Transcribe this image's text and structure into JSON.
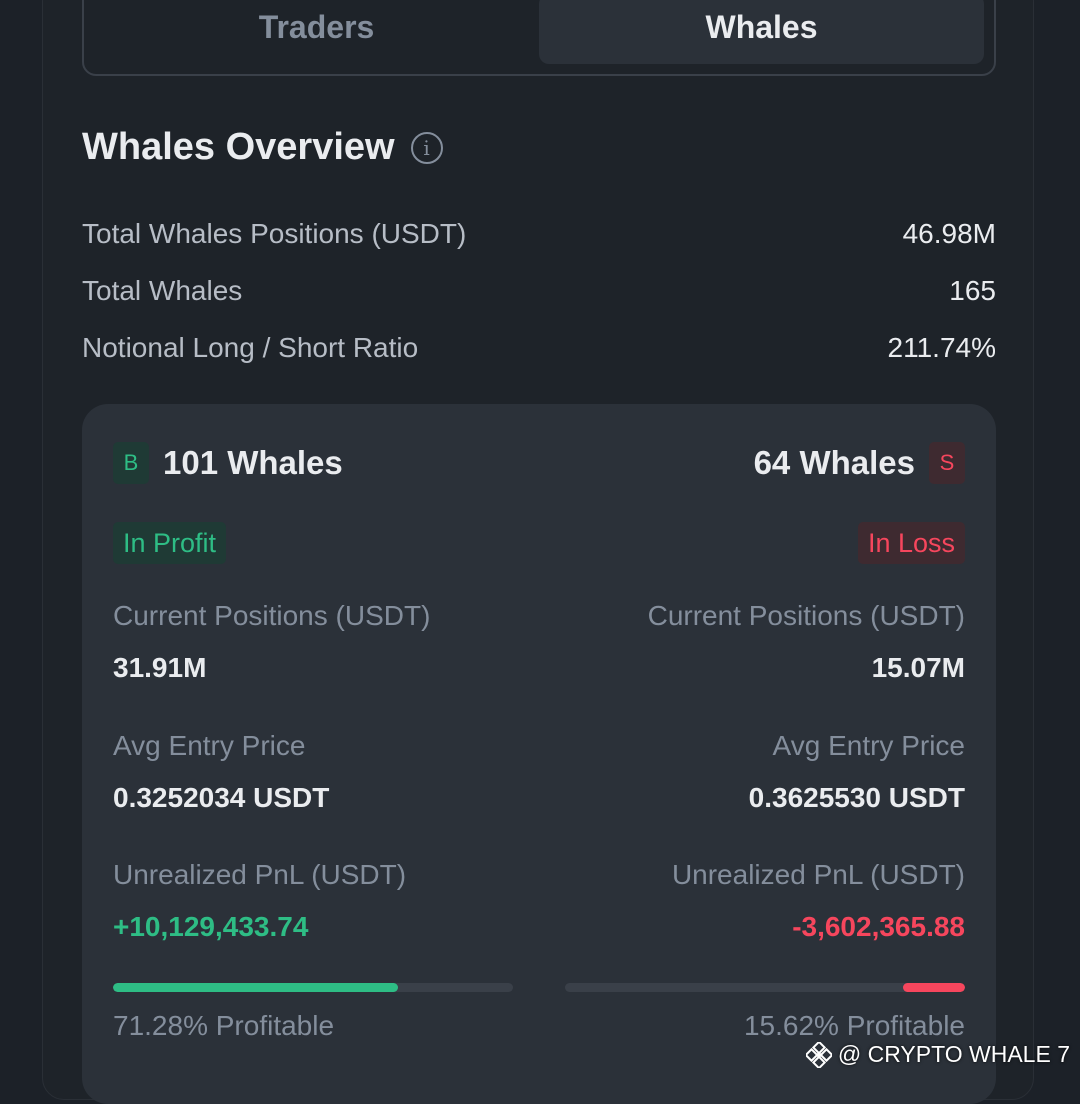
{
  "tabs": [
    {
      "label": "Traders",
      "active": false
    },
    {
      "label": "Whales",
      "active": true
    }
  ],
  "overview": {
    "title": "Whales Overview",
    "info_icon": "info-icon",
    "stats": [
      {
        "label": "Total Whales Positions (USDT)",
        "value": "46.98M"
      },
      {
        "label": "Total Whales",
        "value": "165"
      },
      {
        "label": "Notional Long / Short Ratio",
        "value": "211.74%"
      }
    ]
  },
  "long": {
    "badge": "B",
    "count_label": "101 Whales",
    "status": "In Profit",
    "positions_label": "Current Positions (USDT)",
    "positions_value": "31.91M",
    "entry_label": "Avg Entry Price",
    "entry_value": "0.3252034 USDT",
    "pnl_label": "Unrealized PnL (USDT)",
    "pnl_value": "+10,129,433.74",
    "profitable_pct": 71.28,
    "profitable_label": "71.28% Profitable",
    "color": "#2ebd85"
  },
  "short": {
    "badge": "S",
    "count_label": "64 Whales",
    "status": "In Loss",
    "positions_label": "Current Positions (USDT)",
    "positions_value": "15.07M",
    "entry_label": "Avg Entry Price",
    "entry_value": "0.3625530 USDT",
    "pnl_label": "Unrealized PnL (USDT)",
    "pnl_value": "-3,602,365.88",
    "profitable_pct": 15.62,
    "profitable_label": "15.62% Profitable",
    "color": "#f6465d"
  },
  "watermark": {
    "text": "@ CRYPTO WHALE 7",
    "icon": "binance-logo-icon"
  }
}
